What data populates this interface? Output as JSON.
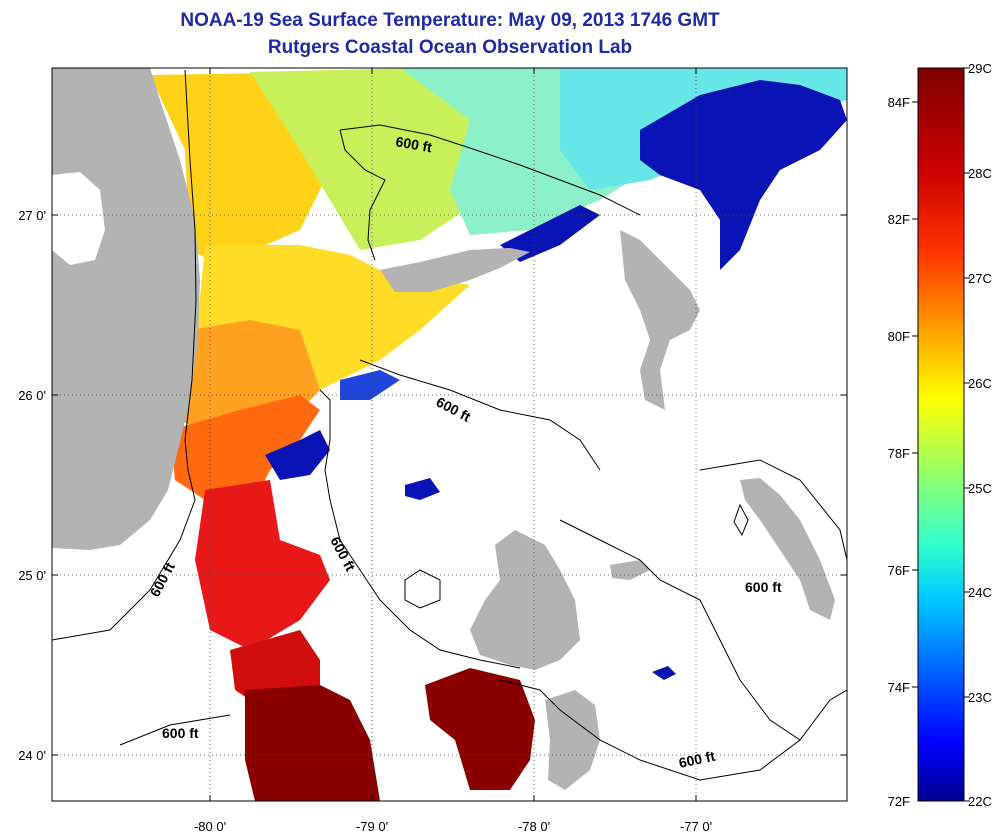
{
  "title": "NOAA-19 Sea Surface Temperature:  May 09, 2013 1746 GMT",
  "subtitle": "Rutgers Coastal Ocean Observation Lab",
  "map": {
    "lon_labels": [
      "-80 0'",
      "-79 0'",
      "-78 0'",
      "-77 0'"
    ],
    "lat_labels": [
      "27 0'",
      "26 0'",
      "25 0'",
      "24 0'"
    ],
    "contour_label": "600 ft",
    "colors": {
      "land": "#b3b3b3",
      "no_data": "#ffffff"
    }
  },
  "colorbar": {
    "celsius_labels": [
      "29C",
      "28C",
      "27C",
      "26C",
      "25C",
      "24C",
      "23C",
      "22C"
    ],
    "fahrenheit_labels": [
      "84F",
      "82F",
      "80F",
      "78F",
      "76F",
      "74F",
      "72F"
    ],
    "colors": [
      "#7f0000",
      "#ff0000",
      "#ff8000",
      "#ffff00",
      "#80ff80",
      "#00ffff",
      "#0080ff",
      "#0000ff",
      "#00008f"
    ]
  }
}
